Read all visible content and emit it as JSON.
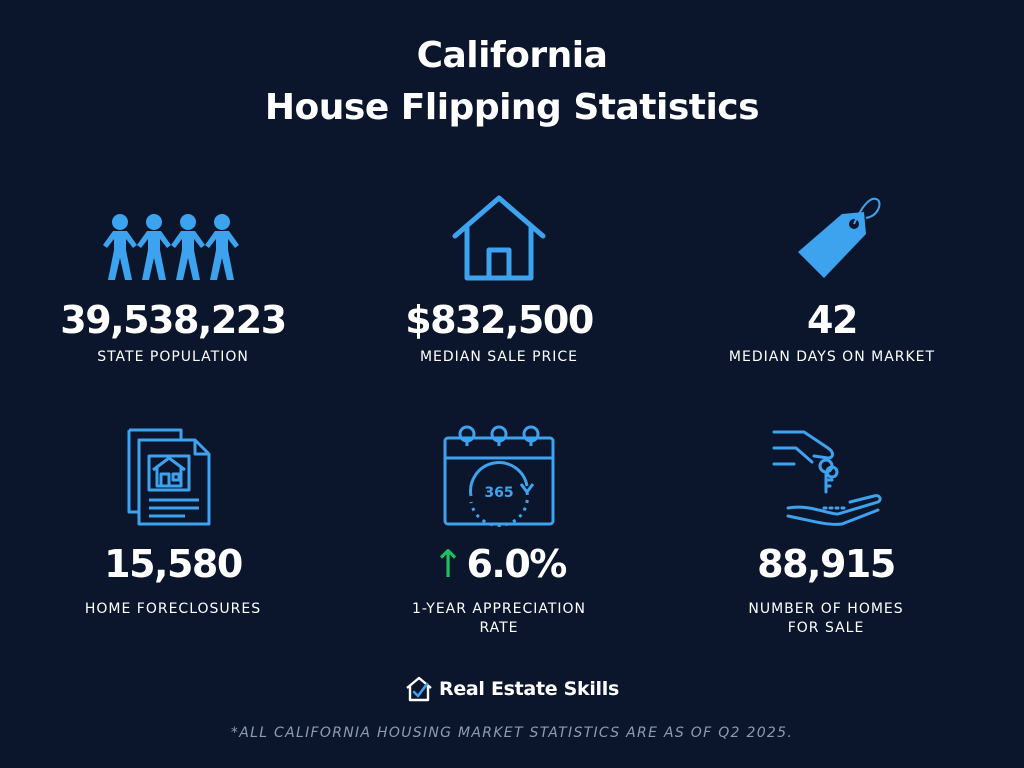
{
  "title": {
    "line1": "California",
    "line2": "House Flipping Statistics"
  },
  "colors": {
    "background": "#0b162c",
    "icon_blue": "#3ea3ee",
    "arrow_green": "#1fbf66"
  },
  "stats": [
    {
      "icon": "people-chain-icon",
      "value": "39,538,223",
      "label": "STATE POPULATION"
    },
    {
      "icon": "house-icon",
      "value": "$832,500",
      "label": "MEDIAN SALE PRICE"
    },
    {
      "icon": "price-tag-icon",
      "value": "42",
      "label": "MEDIAN DAYS ON MARKET"
    },
    {
      "icon": "foreclosure-documents-icon",
      "value": "15,580",
      "label": "HOME FORECLOSURES"
    },
    {
      "icon": "calendar-365-icon",
      "value": "6.0%",
      "trend": "up",
      "label_line1": "1-YEAR APPRECIATION",
      "label_line2": "RATE"
    },
    {
      "icon": "hand-keys-icon",
      "value": "88,915",
      "label_line1": "NUMBER OF HOMES",
      "label_line2": "FOR SALE"
    }
  ],
  "brand": {
    "name": "Real Estate Skills",
    "logo_icon": "house-check-logo-icon"
  },
  "footnote": "*ALL CALIFORNIA HOUSING MARKET STATISTICS ARE AS OF Q2 2025."
}
